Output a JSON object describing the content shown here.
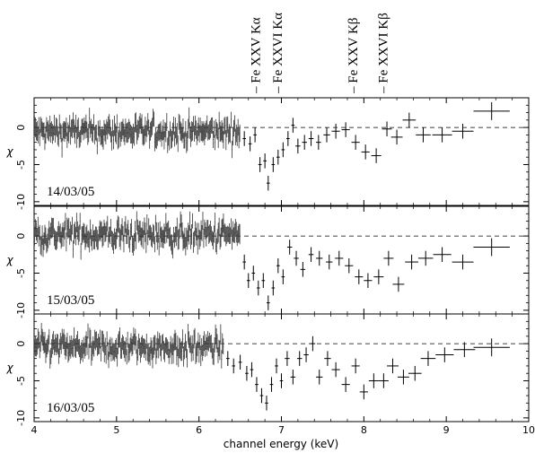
{
  "chart_data": [
    {
      "type": "scatter",
      "panel_label": "14/03/05",
      "ylabel": "χ",
      "ylim": [
        -10.5,
        4
      ],
      "yticks": [
        -10,
        -5,
        0
      ],
      "reference_line": 0,
      "noise": {
        "x_range": [
          4.0,
          6.5
        ],
        "base": -0.6,
        "spread": 1.5,
        "count": 240
      },
      "binned": [
        {
          "x": 6.55,
          "y": -1.5,
          "yerr": 1.0,
          "xerr": 0.02
        },
        {
          "x": 6.62,
          "y": -2.2,
          "yerr": 1.0,
          "xerr": 0.02
        },
        {
          "x": 6.68,
          "y": -1.0,
          "yerr": 1.0,
          "xerr": 0.02
        },
        {
          "x": 6.74,
          "y": -5.0,
          "yerr": 1.0,
          "xerr": 0.02
        },
        {
          "x": 6.8,
          "y": -4.5,
          "yerr": 1.0,
          "xerr": 0.02
        },
        {
          "x": 6.84,
          "y": -7.5,
          "yerr": 1.0,
          "xerr": 0.02
        },
        {
          "x": 6.9,
          "y": -5.0,
          "yerr": 1.0,
          "xerr": 0.02
        },
        {
          "x": 6.96,
          "y": -4.0,
          "yerr": 1.0,
          "xerr": 0.02
        },
        {
          "x": 7.02,
          "y": -3.0,
          "yerr": 1.0,
          "xerr": 0.02
        },
        {
          "x": 7.08,
          "y": -1.5,
          "yerr": 1.0,
          "xerr": 0.02
        },
        {
          "x": 7.14,
          "y": 0.3,
          "yerr": 1.0,
          "xerr": 0.02
        },
        {
          "x": 7.2,
          "y": -2.5,
          "yerr": 1.0,
          "xerr": 0.03
        },
        {
          "x": 7.28,
          "y": -2.0,
          "yerr": 1.0,
          "xerr": 0.03
        },
        {
          "x": 7.36,
          "y": -1.5,
          "yerr": 1.0,
          "xerr": 0.03
        },
        {
          "x": 7.45,
          "y": -2.0,
          "yerr": 1.0,
          "xerr": 0.03
        },
        {
          "x": 7.55,
          "y": -1.0,
          "yerr": 1.0,
          "xerr": 0.04
        },
        {
          "x": 7.66,
          "y": -0.5,
          "yerr": 1.0,
          "xerr": 0.05
        },
        {
          "x": 7.78,
          "y": -0.3,
          "yerr": 1.0,
          "xerr": 0.05
        },
        {
          "x": 7.9,
          "y": -2.0,
          "yerr": 1.0,
          "xerr": 0.05
        },
        {
          "x": 8.02,
          "y": -3.3,
          "yerr": 1.0,
          "xerr": 0.05
        },
        {
          "x": 8.15,
          "y": -3.8,
          "yerr": 1.0,
          "xerr": 0.06
        },
        {
          "x": 8.28,
          "y": -0.2,
          "yerr": 1.0,
          "xerr": 0.06
        },
        {
          "x": 8.4,
          "y": -1.3,
          "yerr": 1.0,
          "xerr": 0.07
        },
        {
          "x": 8.55,
          "y": 1.0,
          "yerr": 1.0,
          "xerr": 0.08
        },
        {
          "x": 8.72,
          "y": -1.0,
          "yerr": 1.0,
          "xerr": 0.09
        },
        {
          "x": 8.95,
          "y": -1.0,
          "yerr": 1.0,
          "xerr": 0.12
        },
        {
          "x": 9.2,
          "y": -0.5,
          "yerr": 1.0,
          "xerr": 0.13
        },
        {
          "x": 9.55,
          "y": 2.2,
          "yerr": 1.2,
          "xerr": 0.22
        }
      ]
    },
    {
      "type": "scatter",
      "panel_label": "15/03/05",
      "ylabel": "χ",
      "ylim": [
        -10.5,
        4
      ],
      "yticks": [
        -10,
        -5,
        0
      ],
      "reference_line": 0,
      "noise": {
        "x_range": [
          4.0,
          6.5
        ],
        "base": 0.2,
        "spread": 1.6,
        "count": 240
      },
      "binned": [
        {
          "x": 6.55,
          "y": -3.5,
          "yerr": 1.0,
          "xerr": 0.02
        },
        {
          "x": 6.6,
          "y": -6.0,
          "yerr": 1.0,
          "xerr": 0.02
        },
        {
          "x": 6.66,
          "y": -5.0,
          "yerr": 1.0,
          "xerr": 0.02
        },
        {
          "x": 6.72,
          "y": -7.0,
          "yerr": 1.0,
          "xerr": 0.02
        },
        {
          "x": 6.78,
          "y": -6.0,
          "yerr": 1.0,
          "xerr": 0.02
        },
        {
          "x": 6.84,
          "y": -9.0,
          "yerr": 1.0,
          "xerr": 0.02
        },
        {
          "x": 6.9,
          "y": -7.0,
          "yerr": 1.0,
          "xerr": 0.02
        },
        {
          "x": 6.96,
          "y": -4.0,
          "yerr": 1.0,
          "xerr": 0.02
        },
        {
          "x": 7.02,
          "y": -5.5,
          "yerr": 1.0,
          "xerr": 0.02
        },
        {
          "x": 7.1,
          "y": -1.5,
          "yerr": 1.0,
          "xerr": 0.03
        },
        {
          "x": 7.18,
          "y": -3.0,
          "yerr": 1.0,
          "xerr": 0.03
        },
        {
          "x": 7.26,
          "y": -4.5,
          "yerr": 1.0,
          "xerr": 0.03
        },
        {
          "x": 7.36,
          "y": -2.5,
          "yerr": 1.0,
          "xerr": 0.03
        },
        {
          "x": 7.46,
          "y": -3.0,
          "yerr": 1.0,
          "xerr": 0.04
        },
        {
          "x": 7.58,
          "y": -3.5,
          "yerr": 1.0,
          "xerr": 0.04
        },
        {
          "x": 7.7,
          "y": -3.0,
          "yerr": 1.0,
          "xerr": 0.05
        },
        {
          "x": 7.82,
          "y": -4.0,
          "yerr": 1.0,
          "xerr": 0.05
        },
        {
          "x": 7.94,
          "y": -5.5,
          "yerr": 1.0,
          "xerr": 0.05
        },
        {
          "x": 8.05,
          "y": -6.0,
          "yerr": 1.0,
          "xerr": 0.05
        },
        {
          "x": 8.18,
          "y": -5.5,
          "yerr": 1.0,
          "xerr": 0.06
        },
        {
          "x": 8.3,
          "y": -3.0,
          "yerr": 1.0,
          "xerr": 0.06
        },
        {
          "x": 8.42,
          "y": -6.5,
          "yerr": 1.0,
          "xerr": 0.07
        },
        {
          "x": 8.58,
          "y": -3.5,
          "yerr": 1.0,
          "xerr": 0.08
        },
        {
          "x": 8.75,
          "y": -3.0,
          "yerr": 1.0,
          "xerr": 0.09
        },
        {
          "x": 8.95,
          "y": -2.5,
          "yerr": 1.0,
          "xerr": 0.11
        },
        {
          "x": 9.2,
          "y": -3.5,
          "yerr": 1.0,
          "xerr": 0.13
        },
        {
          "x": 9.55,
          "y": -1.5,
          "yerr": 1.2,
          "xerr": 0.22
        }
      ]
    },
    {
      "type": "scatter",
      "panel_label": "16/03/05",
      "ylabel": "χ",
      "ylim": [
        -10.5,
        4
      ],
      "yticks": [
        -10,
        -5,
        0
      ],
      "reference_line": 0,
      "noise": {
        "x_range": [
          4.0,
          6.3
        ],
        "base": -0.5,
        "spread": 1.5,
        "count": 220
      },
      "binned": [
        {
          "x": 6.35,
          "y": -2.0,
          "yerr": 1.0,
          "xerr": 0.02
        },
        {
          "x": 6.42,
          "y": -3.0,
          "yerr": 1.0,
          "xerr": 0.02
        },
        {
          "x": 6.5,
          "y": -2.5,
          "yerr": 1.0,
          "xerr": 0.02
        },
        {
          "x": 6.58,
          "y": -4.0,
          "yerr": 1.0,
          "xerr": 0.02
        },
        {
          "x": 6.64,
          "y": -3.5,
          "yerr": 1.0,
          "xerr": 0.02
        },
        {
          "x": 6.7,
          "y": -5.5,
          "yerr": 1.0,
          "xerr": 0.02
        },
        {
          "x": 6.76,
          "y": -7.0,
          "yerr": 1.0,
          "xerr": 0.02
        },
        {
          "x": 6.82,
          "y": -8.0,
          "yerr": 1.0,
          "xerr": 0.02
        },
        {
          "x": 6.88,
          "y": -5.5,
          "yerr": 1.0,
          "xerr": 0.02
        },
        {
          "x": 6.94,
          "y": -3.0,
          "yerr": 1.0,
          "xerr": 0.02
        },
        {
          "x": 7.0,
          "y": -5.0,
          "yerr": 1.0,
          "xerr": 0.02
        },
        {
          "x": 7.07,
          "y": -2.0,
          "yerr": 1.0,
          "xerr": 0.03
        },
        {
          "x": 7.14,
          "y": -4.5,
          "yerr": 1.0,
          "xerr": 0.03
        },
        {
          "x": 7.22,
          "y": -2.0,
          "yerr": 1.0,
          "xerr": 0.03
        },
        {
          "x": 7.3,
          "y": -1.5,
          "yerr": 1.0,
          "xerr": 0.03
        },
        {
          "x": 7.38,
          "y": 0.0,
          "yerr": 1.0,
          "xerr": 0.03
        },
        {
          "x": 7.46,
          "y": -4.5,
          "yerr": 1.0,
          "xerr": 0.04
        },
        {
          "x": 7.56,
          "y": -2.0,
          "yerr": 1.0,
          "xerr": 0.04
        },
        {
          "x": 7.66,
          "y": -3.5,
          "yerr": 1.0,
          "xerr": 0.05
        },
        {
          "x": 7.78,
          "y": -5.5,
          "yerr": 1.0,
          "xerr": 0.05
        },
        {
          "x": 7.9,
          "y": -3.0,
          "yerr": 1.0,
          "xerr": 0.05
        },
        {
          "x": 8.0,
          "y": -6.5,
          "yerr": 1.0,
          "xerr": 0.05
        },
        {
          "x": 8.12,
          "y": -5.0,
          "yerr": 1.0,
          "xerr": 0.06
        },
        {
          "x": 8.24,
          "y": -5.0,
          "yerr": 1.0,
          "xerr": 0.06
        },
        {
          "x": 8.35,
          "y": -3.0,
          "yerr": 1.0,
          "xerr": 0.07
        },
        {
          "x": 8.48,
          "y": -4.5,
          "yerr": 1.0,
          "xerr": 0.07
        },
        {
          "x": 8.62,
          "y": -4.0,
          "yerr": 1.0,
          "xerr": 0.08
        },
        {
          "x": 8.78,
          "y": -2.0,
          "yerr": 1.0,
          "xerr": 0.09
        },
        {
          "x": 8.98,
          "y": -1.5,
          "yerr": 1.0,
          "xerr": 0.11
        },
        {
          "x": 9.22,
          "y": -0.8,
          "yerr": 1.0,
          "xerr": 0.13
        },
        {
          "x": 9.55,
          "y": -0.5,
          "yerr": 1.2,
          "xerr": 0.22
        }
      ]
    }
  ],
  "shared": {
    "xlabel": "channel energy (keV)",
    "xlim": [
      4,
      10
    ],
    "xticks": [
      4,
      5,
      6,
      7,
      8,
      9,
      10
    ],
    "line_annotations": [
      {
        "label": "Fe XXV Kα",
        "x": 6.7
      },
      {
        "label": "Fe XXVI Kα",
        "x": 6.97
      },
      {
        "label": "Fe XXV Kβ",
        "x": 7.88
      },
      {
        "label": "Fe XXVI Kβ",
        "x": 8.25
      }
    ]
  }
}
